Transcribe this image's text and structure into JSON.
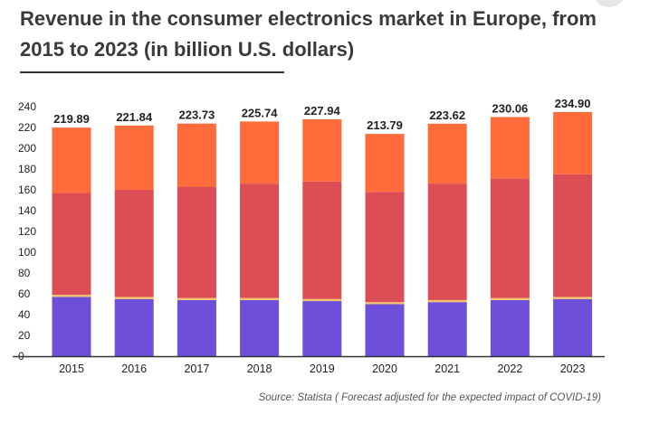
{
  "title": "Revenue in the consumer electronics market in Europe, from 2015 to 2023 (in billion U.S. dollars)",
  "source": "Source: Statista ( Forecast adjusted for the expected impact of COVID-19)",
  "colors": {
    "segment1": "#6d4fda",
    "segment2": "#f3c46a",
    "segment3": "#dc4d55",
    "segment4": "#ff6b3a",
    "axis": "#333333",
    "text": "#222222"
  },
  "chart_data": {
    "type": "bar",
    "stacked": true,
    "categories": [
      "2015",
      "2016",
      "2017",
      "2018",
      "2019",
      "2020",
      "2021",
      "2022",
      "2023"
    ],
    "series": [
      {
        "values": [
          57,
          55,
          54,
          54,
          53,
          50,
          52,
          54,
          55
        ]
      },
      {
        "values": [
          2,
          2,
          2,
          2,
          2,
          2,
          2,
          2,
          2
        ]
      },
      {
        "values": [
          98,
          103,
          107,
          110,
          113,
          106,
          112,
          115,
          118
        ]
      },
      {
        "values": [
          62.89,
          61.84,
          60.73,
          59.74,
          59.94,
          55.79,
          57.62,
          59.06,
          59.9
        ]
      }
    ],
    "totals": [
      "219.89",
      "221.84",
      "223.73",
      "225.74",
      "227.94",
      "213.79",
      "223.62",
      "230.06",
      "234.90"
    ],
    "yticks": [
      0,
      20,
      40,
      60,
      80,
      100,
      120,
      140,
      160,
      180,
      200,
      220,
      240
    ],
    "ylim": [
      0,
      240
    ],
    "grid": false,
    "legend": "none"
  }
}
